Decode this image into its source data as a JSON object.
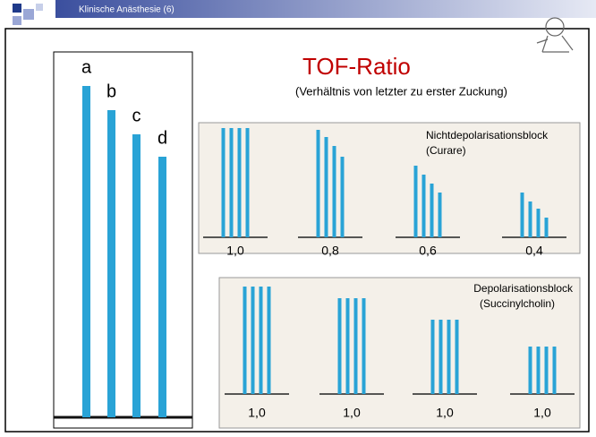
{
  "header": {
    "title": "Klinische Anästhesie (6)"
  },
  "title": "TOF-Ratio",
  "subtitle": "(Verhältnis von letzter zu erster Zuckung)",
  "left_panel": {
    "labels": [
      "a",
      "b",
      "c",
      "d"
    ]
  },
  "panel_1": {
    "title": "Nichtdepolarisationsblock",
    "subtitle": "(Curare)",
    "labels": [
      "1,0",
      "0,8",
      "0,6",
      "0,4"
    ]
  },
  "panel_2": {
    "title": "Depolarisationsblock",
    "subtitle": "(Succinylcholin)",
    "labels": [
      "1,0",
      "1,0",
      "1,0",
      "1,0"
    ]
  }
}
